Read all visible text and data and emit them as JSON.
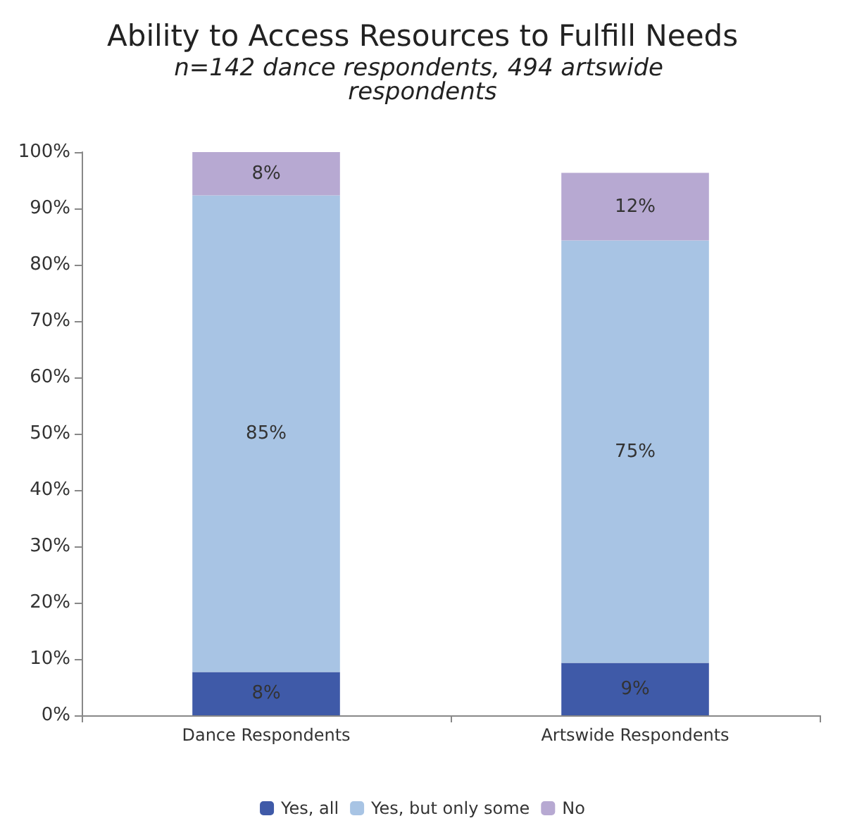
{
  "chart_data": {
    "type": "bar",
    "title": "Ability to Access Resources to Fulfill Needs",
    "subtitle": "n=142 dance respondents, 494 artswide respondents",
    "categories": [
      "Dance Respondents",
      "Artswide Respondents"
    ],
    "stacked": true,
    "series": [
      {
        "name": "Yes, all",
        "color": "#3f5aa8",
        "values": [
          7.7,
          9.3
        ],
        "value_labels": [
          "8%",
          "9%"
        ]
      },
      {
        "name": "Yes, but only some",
        "color": "#a8c4e4",
        "values": [
          84.6,
          75
        ],
        "value_labels": [
          "85%",
          "75%"
        ]
      },
      {
        "name": "No",
        "color": "#b7a9d2",
        "values": [
          7.7,
          12
        ],
        "value_labels": [
          "8%",
          "12%"
        ]
      }
    ],
    "ylim": [
      0,
      100
    ],
    "yticks": [
      {
        "value": 0,
        "label": "0%"
      },
      {
        "value": 10,
        "label": "10%"
      },
      {
        "value": 20,
        "label": "20%"
      },
      {
        "value": 30,
        "label": "30%"
      },
      {
        "value": 40,
        "label": "40%"
      },
      {
        "value": 50,
        "label": "50%"
      },
      {
        "value": 60,
        "label": "60%"
      },
      {
        "value": 70,
        "label": "70%"
      },
      {
        "value": 80,
        "label": "80%"
      },
      {
        "value": 90,
        "label": "90%"
      },
      {
        "value": 100,
        "label": "100%"
      }
    ],
    "grid": false,
    "legend": "bottom"
  }
}
